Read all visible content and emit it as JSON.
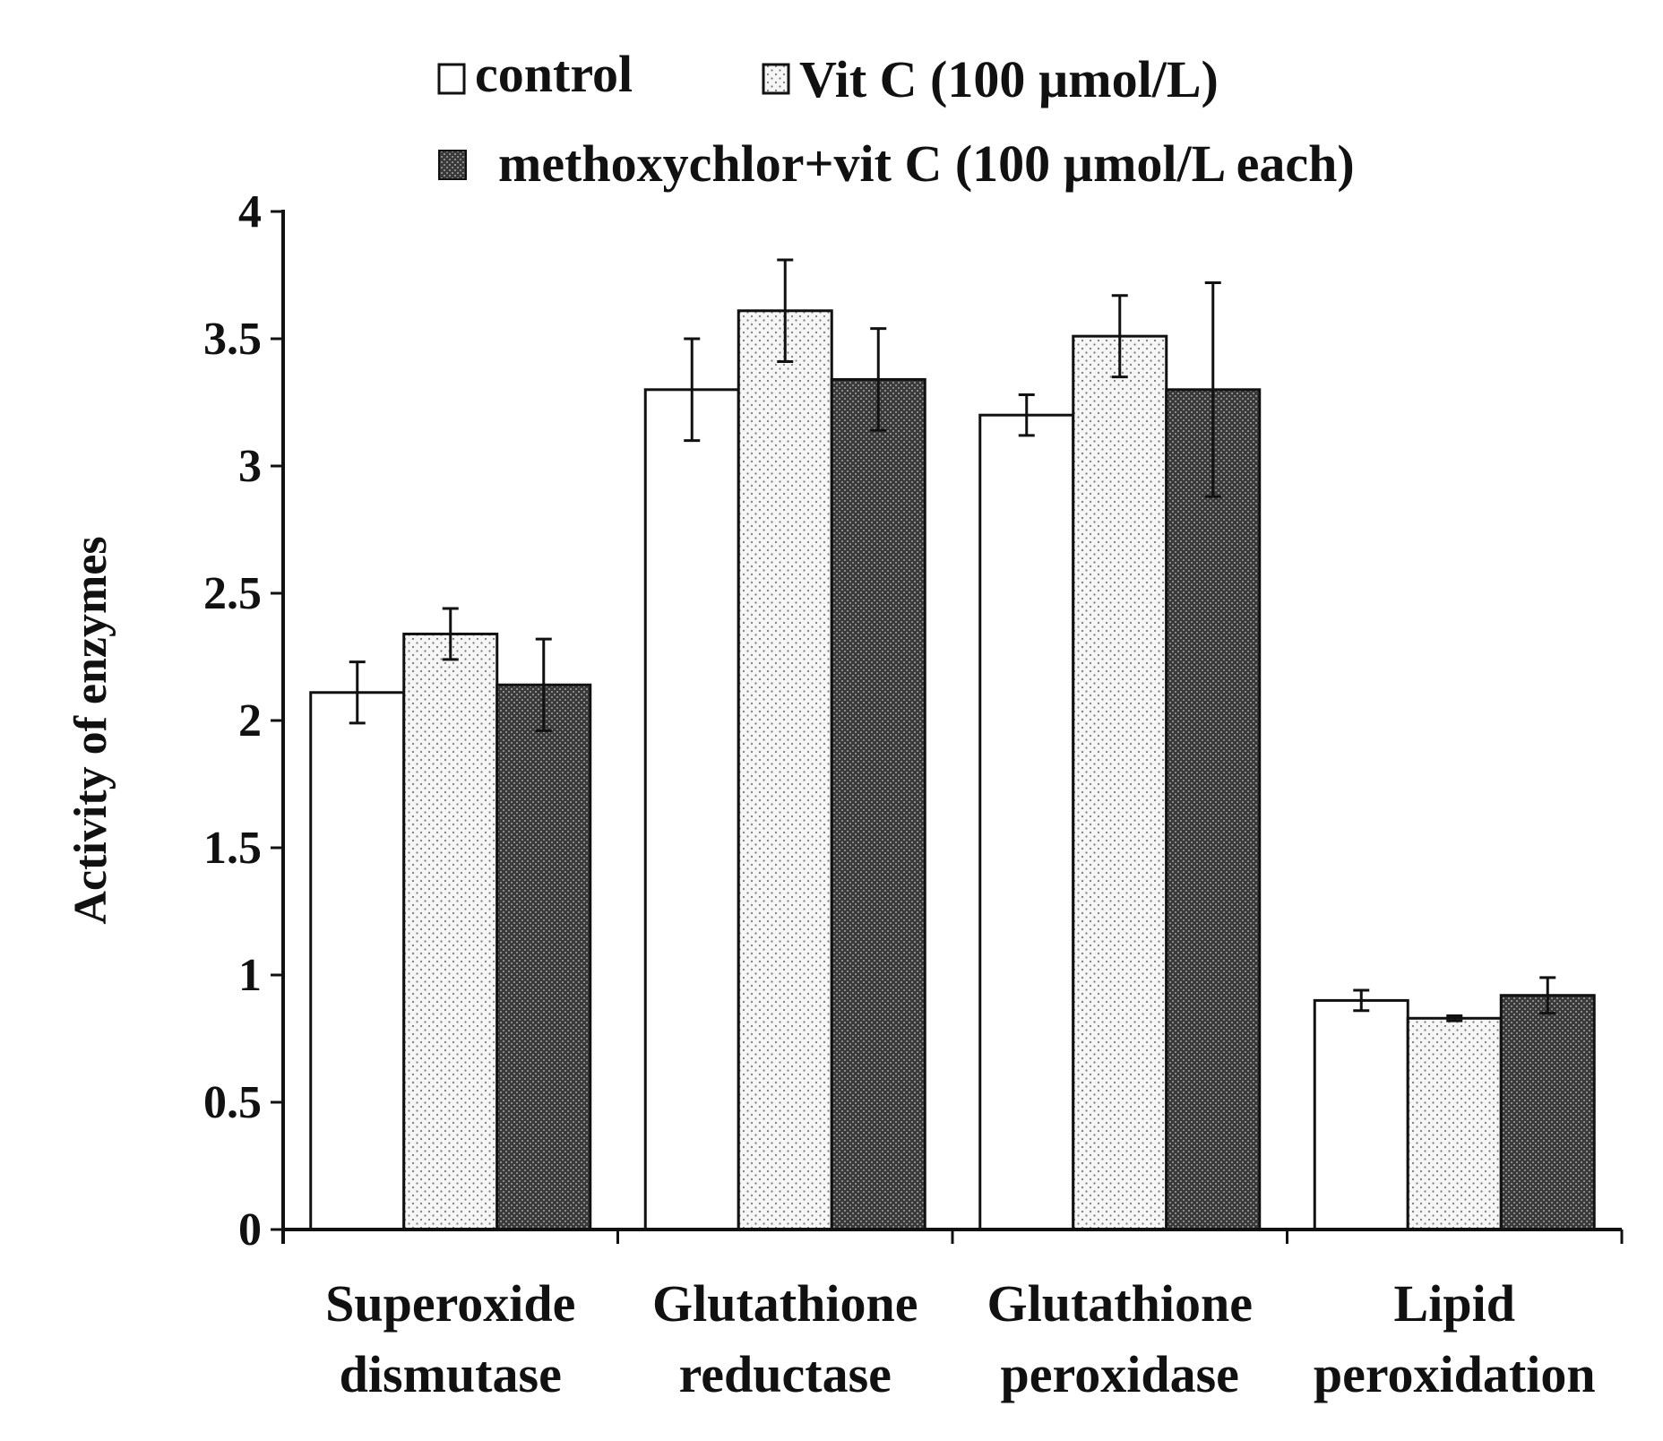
{
  "chart_data": {
    "type": "bar",
    "title": "",
    "xlabel": "",
    "ylabel": "Activity of enzymes",
    "ylim": [
      0,
      4
    ],
    "yticks": [
      0,
      0.5,
      1,
      1.5,
      2,
      2.5,
      3,
      3.5,
      4
    ],
    "ytick_labels": [
      "0",
      "0.5",
      "1",
      "1.5",
      "2",
      "2.5",
      "3",
      "3.5",
      "4"
    ],
    "categories": [
      [
        "Superoxide",
        "dismutase"
      ],
      [
        "Glutathione",
        "reductase"
      ],
      [
        "Glutathione",
        "peroxidase"
      ],
      [
        "Lipid",
        "peroxidation"
      ]
    ],
    "legend_position": "top",
    "grid": false,
    "series": [
      {
        "name": "control",
        "values": [
          2.11,
          3.3,
          3.2,
          0.9
        ],
        "errors": [
          0.12,
          0.2,
          0.08,
          0.04
        ],
        "fill": "white"
      },
      {
        "name": "Vit C (100 µmol/L)",
        "values": [
          2.34,
          3.61,
          3.51,
          0.83
        ],
        "errors": [
          0.1,
          0.2,
          0.16,
          0.01
        ],
        "fill": "light-dots"
      },
      {
        "name": "methoxychlor+vit C (100 µmol/L each)",
        "values": [
          2.14,
          3.34,
          3.3,
          0.92
        ],
        "errors": [
          0.18,
          0.2,
          0.42,
          0.07
        ],
        "fill": "dark-crosshatch"
      }
    ]
  }
}
